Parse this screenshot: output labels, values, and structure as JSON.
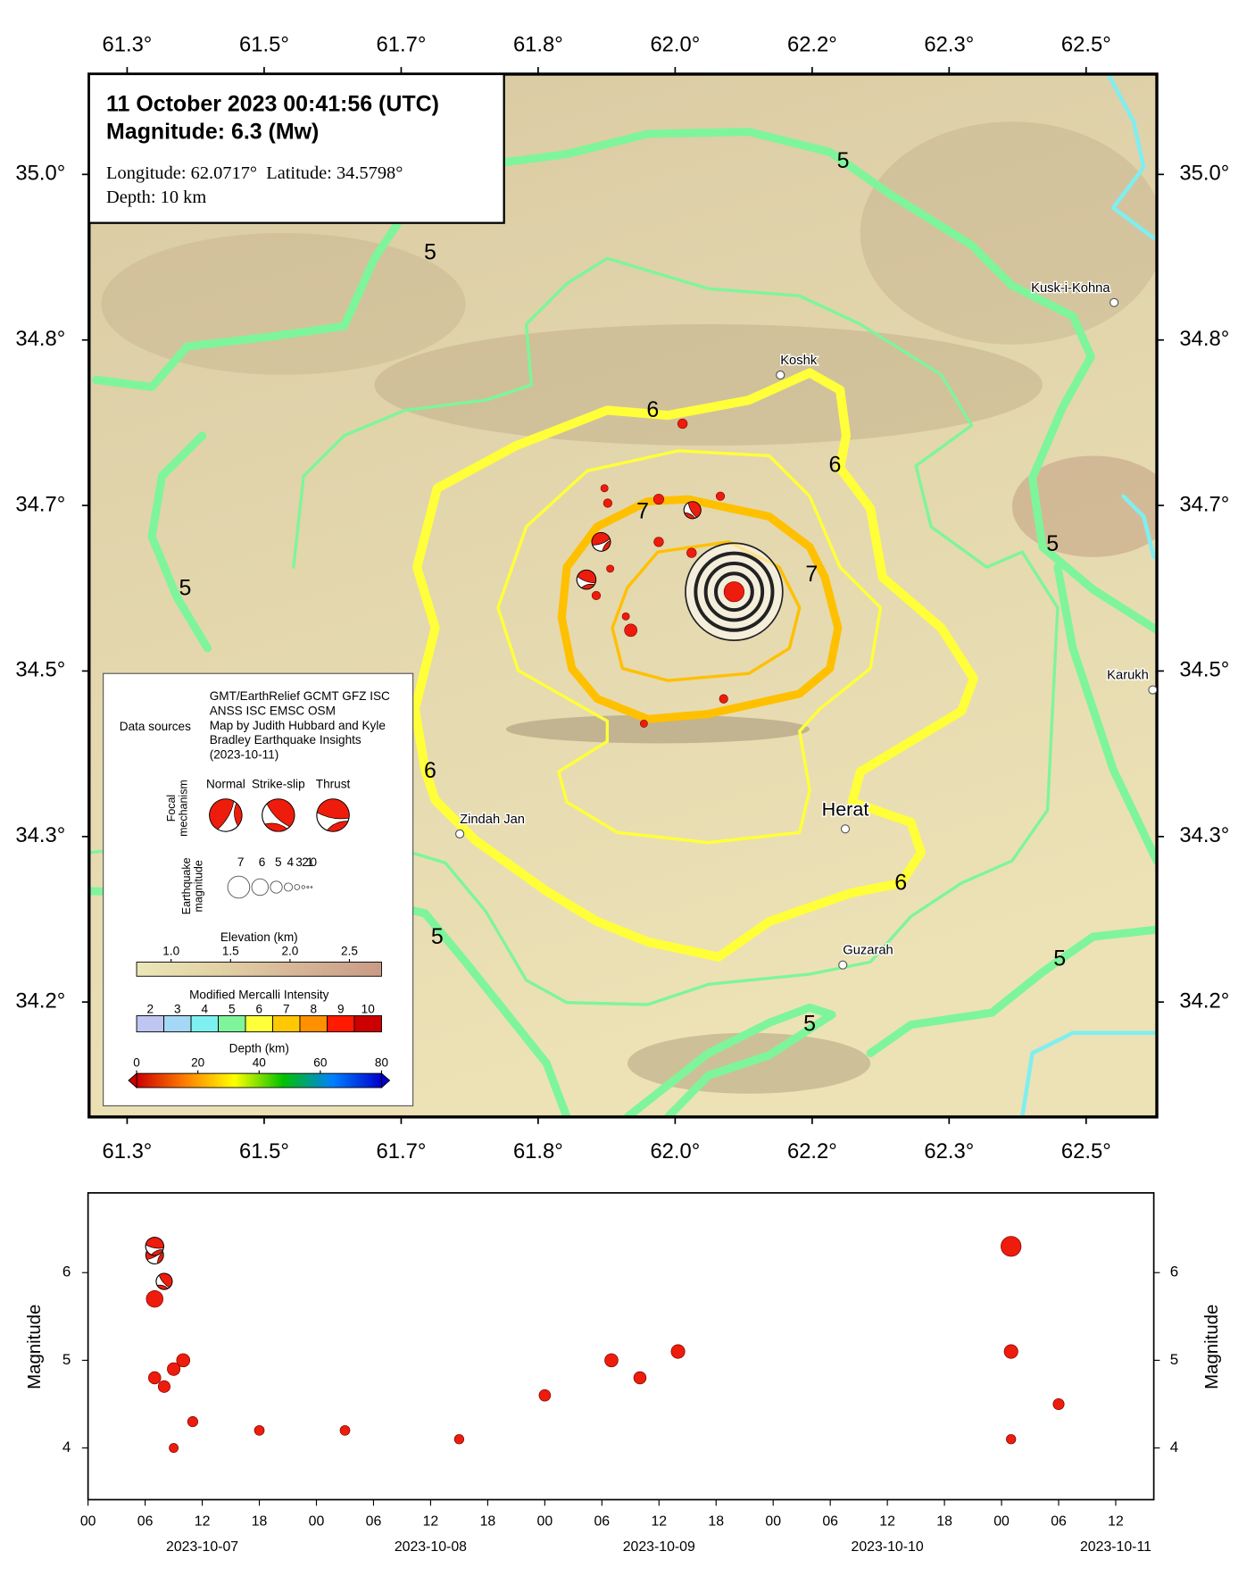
{
  "map": {
    "type": "map",
    "info": {
      "title": "11 October 2023 00:41:56 (UTC)",
      "magnitude": "Magnitude: 6.3 (Mw)",
      "location": "Longitude: 62.0717°  Latitude: 34.5798°",
      "depth": "Depth: 10 km"
    },
    "xlim": [
      61.287,
      62.586
    ],
    "ylim": [
      34.051,
      35.101
    ],
    "xticks": [
      {
        "value": 61.3333,
        "label": "61.3°"
      },
      {
        "value": 61.5,
        "label": "61.5°"
      },
      {
        "value": 61.6667,
        "label": "61.7°"
      },
      {
        "value": 61.8333,
        "label": "61.8°"
      },
      {
        "value": 62.0,
        "label": "62.0°"
      },
      {
        "value": 62.1667,
        "label": "62.2°"
      },
      {
        "value": 62.3333,
        "label": "62.3°"
      },
      {
        "value": 62.5,
        "label": "62.5°"
      }
    ],
    "yticks": [
      {
        "value": 35.0,
        "label": "35.0°"
      },
      {
        "value": 34.8333,
        "label": "34.8°"
      },
      {
        "value": 34.6667,
        "label": "34.7°"
      },
      {
        "value": 34.5,
        "label": "34.5°"
      },
      {
        "value": 34.3333,
        "label": "34.3°"
      },
      {
        "value": 34.1667,
        "label": "34.2°"
      }
    ],
    "epicenter": {
      "lon": 62.0717,
      "lat": 34.5798,
      "mag": 6.3
    },
    "events": [
      {
        "lon": 62.009,
        "lat": 34.749,
        "mag": 4.9
      },
      {
        "lon": 61.914,
        "lat": 34.684,
        "mag": 4.2
      },
      {
        "lon": 61.918,
        "lat": 34.669,
        "mag": 4.6
      },
      {
        "lon": 61.98,
        "lat": 34.673,
        "mag": 5.1
      },
      {
        "lon": 62.055,
        "lat": 34.676,
        "mag": 4.6
      },
      {
        "lon": 62.025,
        "lat": 34.661,
        "mag": 5.1
      },
      {
        "lon": 61.98,
        "lat": 34.63,
        "mag": 4.9
      },
      {
        "lon": 62.02,
        "lat": 34.619,
        "mag": 4.9
      },
      {
        "lon": 61.921,
        "lat": 34.603,
        "mag": 4.2
      },
      {
        "lon": 61.904,
        "lat": 34.576,
        "mag": 4.6
      },
      {
        "lon": 61.94,
        "lat": 34.555,
        "mag": 4.2
      },
      {
        "lon": 61.946,
        "lat": 34.541,
        "mag": 5.7
      },
      {
        "lon": 62.059,
        "lat": 34.472,
        "mag": 4.6
      },
      {
        "lon": 61.962,
        "lat": 34.447,
        "mag": 4.2
      }
    ],
    "focal_mechanisms": [
      {
        "lon": 61.91,
        "lat": 34.63,
        "mag": 6.2
      },
      {
        "lon": 61.892,
        "lat": 34.592,
        "mag": 6.3
      },
      {
        "lon": 62.021,
        "lat": 34.662,
        "mag": 5.9
      }
    ],
    "places": [
      {
        "name": "Koshk",
        "lon": 62.128,
        "lat": 34.798
      },
      {
        "name": "Kusk-i-Kohna",
        "lon": 62.534,
        "lat": 34.871
      },
      {
        "name": "Karukh",
        "lon": 62.581,
        "lat": 34.481
      },
      {
        "name": "Herat",
        "lon": 62.207,
        "lat": 34.341
      },
      {
        "name": "Zindah Jan",
        "lon": 61.738,
        "lat": 34.336
      },
      {
        "name": "Guzarah",
        "lon": 62.204,
        "lat": 34.204
      }
    ],
    "contour_labels": [
      "5",
      "5",
      "5",
      "5",
      "5",
      "5",
      "5",
      "6",
      "6",
      "6",
      "6",
      "7",
      "7"
    ],
    "legend": {
      "sources_label": "Data sources",
      "sources": [
        "GMT/EarthRelief GCMT GFZ ISC",
        "ANSS ISC EMSC OSM",
        "Map by Judith Hubbard and Kyle",
        "Bradley Earthquake Insights",
        "(2023-10-11)"
      ],
      "focal_title": [
        "Focal",
        "mechanism"
      ],
      "focal_types": [
        "Normal",
        "Strike-slip",
        "Thrust"
      ],
      "mag_title": [
        "Earthquake",
        "magnitude"
      ],
      "mag_scale": [
        7,
        6,
        5,
        4,
        3,
        2,
        1,
        0
      ],
      "elevation": {
        "title": "Elevation (km)",
        "lim": [
          0.71,
          2.77
        ],
        "ticks": [
          {
            "value": 1,
            "label": "1.0"
          },
          {
            "value": 1.5,
            "label": "1.5"
          },
          {
            "value": 2,
            "label": "2.0"
          },
          {
            "value": 2.5,
            "label": "2.5"
          }
        ],
        "colors": [
          "#ebe7b8",
          "#e2d2a6",
          "#d6b496",
          "#c99b86"
        ]
      },
      "mmi": {
        "title": "Modified Mercalli Intensity",
        "ticks": [
          2,
          3,
          4,
          5,
          6,
          7,
          8,
          9,
          10
        ],
        "colors": [
          "#bfc6f2",
          "#a4d8f5",
          "#7ff0f0",
          "#7ef59a",
          "#ffff3a",
          "#ffc800",
          "#ff9000",
          "#ff1a00",
          "#cc0000"
        ]
      },
      "depth": {
        "title": "Depth (km)",
        "lim": [
          0,
          80
        ],
        "ticks": [
          0,
          20,
          40,
          60,
          80
        ],
        "colors": [
          "#cc0000",
          "#ff8000",
          "#ffff00",
          "#00c000",
          "#0080ff",
          "#0000cc"
        ]
      }
    }
  },
  "chart_data": {
    "type": "scatter",
    "ylabel": "Magnitude",
    "color": "#ee1c0c",
    "x": [
      "2023-10-07 07:00",
      "2023-10-07 07:00",
      "2023-10-07 08:00",
      "2023-10-07 07:00",
      "2023-10-07 07:00",
      "2023-10-07 08:00",
      "2023-10-07 10:00",
      "2023-10-07 09:00",
      "2023-10-07 09:00",
      "2023-10-07 11:00",
      "2023-10-07 18:00",
      "2023-10-08 03:00",
      "2023-10-08 15:00",
      "2023-10-09 00:00",
      "2023-10-09 07:00",
      "2023-10-09 10:00",
      "2023-10-09 14:00",
      "2023-10-11 01:00",
      "2023-10-11 01:00",
      "2023-10-11 01:00",
      "2023-10-11 06:00"
    ],
    "values": [
      6.2,
      6.3,
      5.9,
      5.7,
      4.8,
      4.7,
      5.0,
      4.9,
      4.0,
      4.3,
      4.2,
      4.2,
      4.1,
      4.6,
      5.0,
      4.8,
      5.1,
      6.3,
      5.1,
      4.1,
      4.5
    ],
    "markers": [
      "beachball",
      "beachball",
      "beachball",
      "circle",
      "circle",
      "circle",
      "circle",
      "circle",
      "circle",
      "circle",
      "circle",
      "circle",
      "circle",
      "circle",
      "circle",
      "circle",
      "circle",
      "circle",
      "circle",
      "circle",
      "circle"
    ],
    "xlim": [
      "2023-10-07 00:00",
      "2023-10-11 16:00"
    ],
    "ylim": [
      3.41,
      6.91
    ],
    "yticks": [
      4,
      5,
      6
    ],
    "xticks": [
      {
        "value": "2023-10-07 00:00",
        "label": "00"
      },
      {
        "value": "2023-10-07 06:00",
        "label": "06"
      },
      {
        "value": "2023-10-07 12:00",
        "label": "12"
      },
      {
        "value": "2023-10-07 18:00",
        "label": "18"
      },
      {
        "value": "2023-10-08 00:00",
        "label": "00"
      },
      {
        "value": "2023-10-08 06:00",
        "label": "06"
      },
      {
        "value": "2023-10-08 12:00",
        "label": "12"
      },
      {
        "value": "2023-10-08 18:00",
        "label": "18"
      },
      {
        "value": "2023-10-09 00:00",
        "label": "00"
      },
      {
        "value": "2023-10-09 06:00",
        "label": "06"
      },
      {
        "value": "2023-10-09 12:00",
        "label": "12"
      },
      {
        "value": "2023-10-09 18:00",
        "label": "18"
      },
      {
        "value": "2023-10-10 00:00",
        "label": "00"
      },
      {
        "value": "2023-10-10 06:00",
        "label": "06"
      },
      {
        "value": "2023-10-10 12:00",
        "label": "12"
      },
      {
        "value": "2023-10-10 18:00",
        "label": "18"
      },
      {
        "value": "2023-10-11 00:00",
        "label": "00"
      },
      {
        "value": "2023-10-11 06:00",
        "label": "06"
      },
      {
        "value": "2023-10-11 12:00",
        "label": "12"
      }
    ],
    "date_labels": [
      {
        "value": "2023-10-07 12:00",
        "label": "2023-10-07"
      },
      {
        "value": "2023-10-08 12:00",
        "label": "2023-10-08"
      },
      {
        "value": "2023-10-09 12:00",
        "label": "2023-10-09"
      },
      {
        "value": "2023-10-10 12:00",
        "label": "2023-10-10"
      },
      {
        "value": "2023-10-11 12:00",
        "label": "2023-10-11"
      }
    ]
  }
}
